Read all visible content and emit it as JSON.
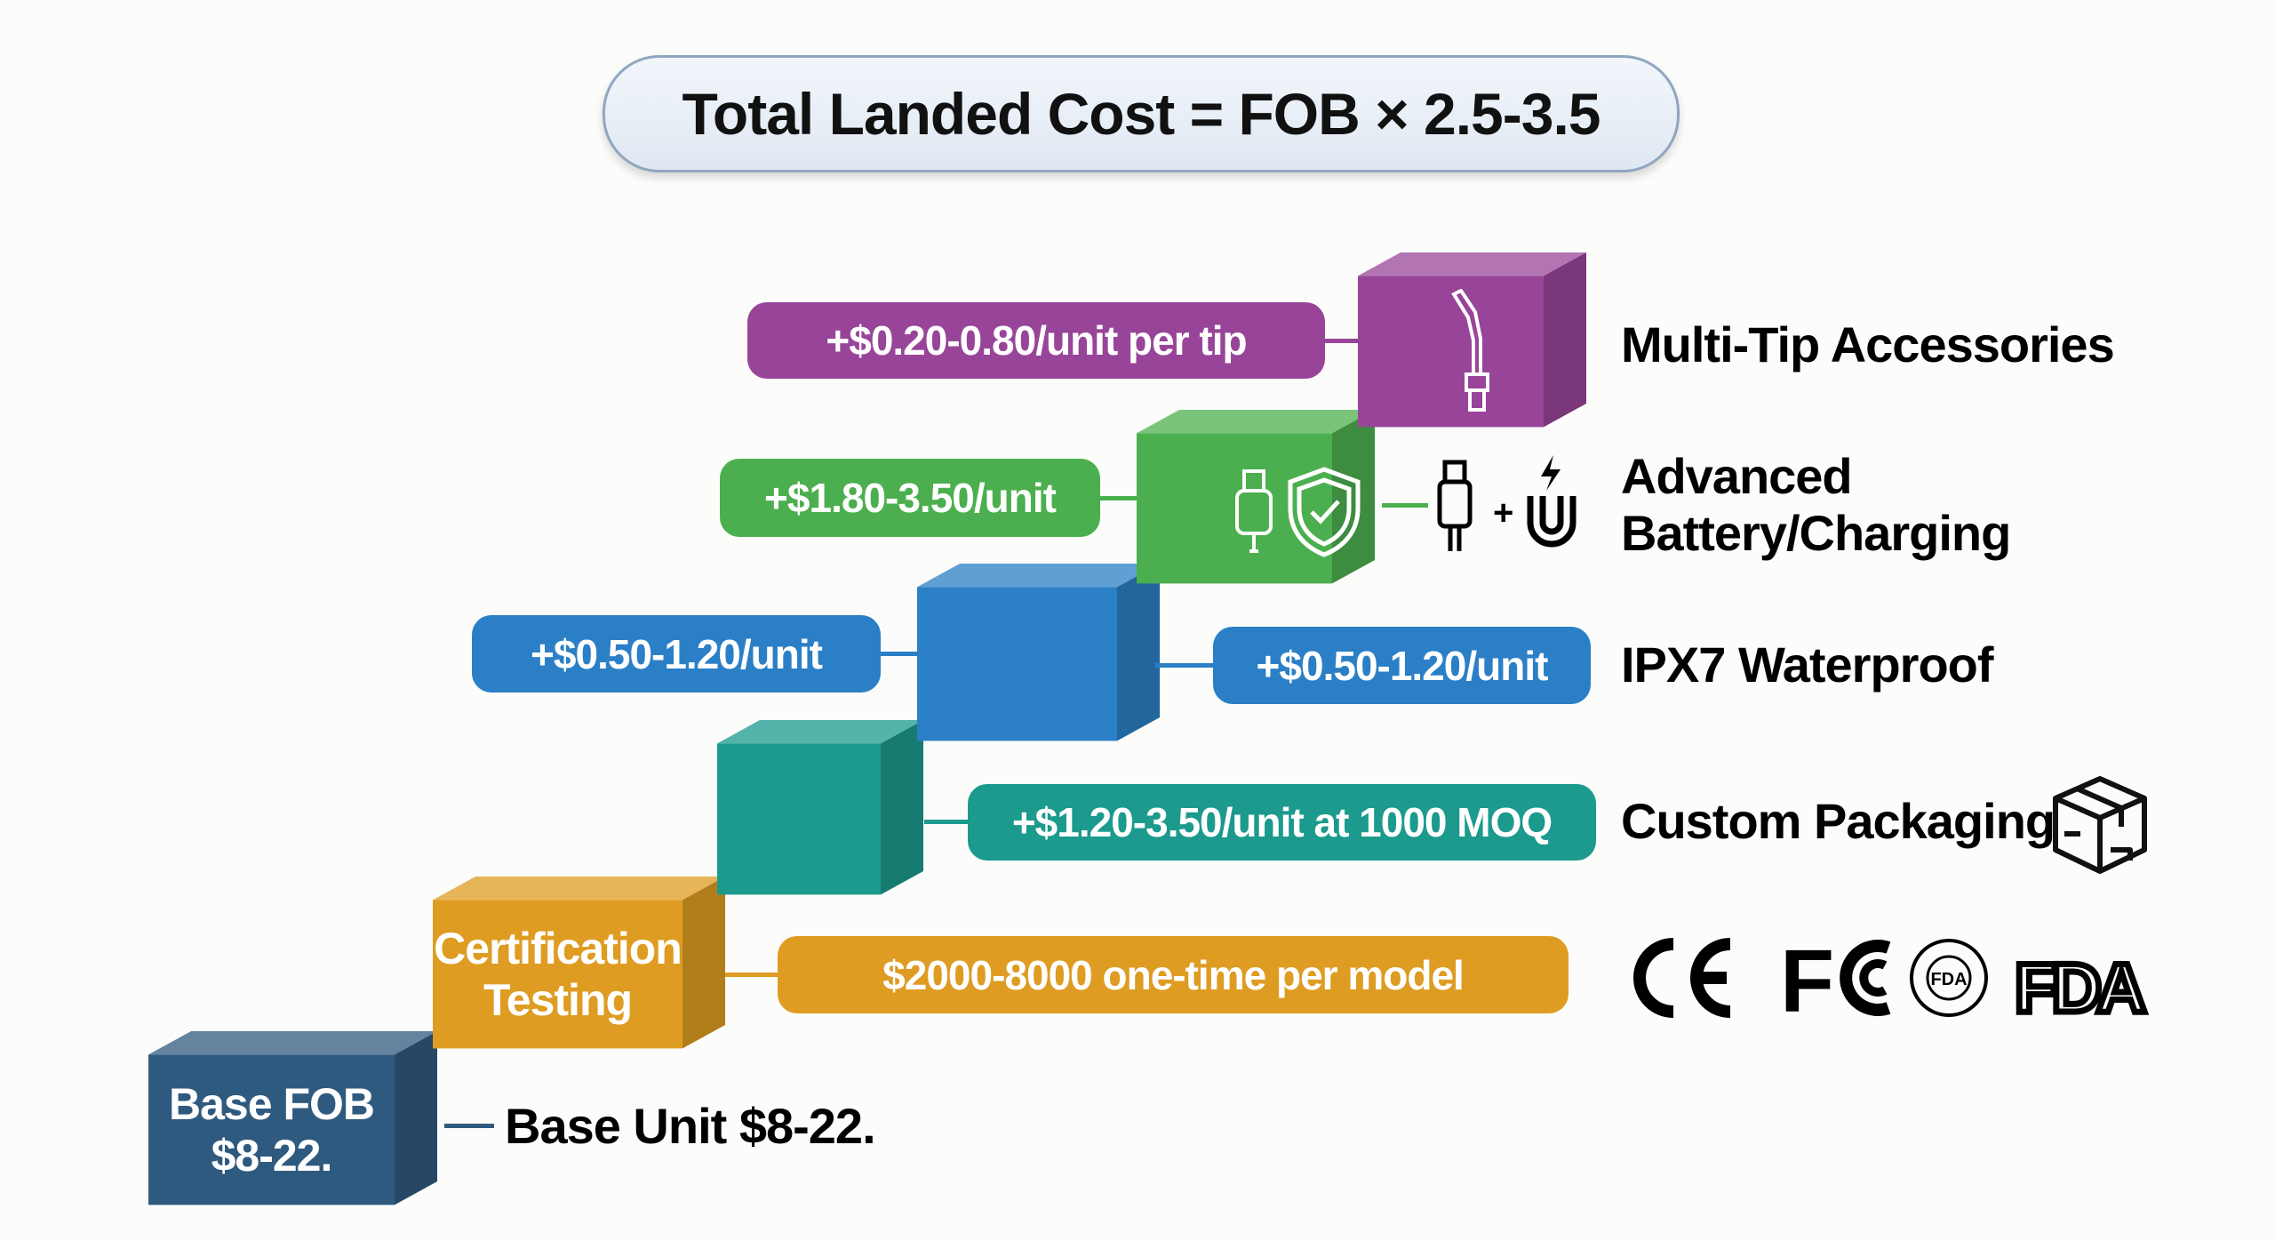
{
  "title": "Total Landed Cost = FOB × 2.5-3.5",
  "colors": {
    "base": "#2f5a7f",
    "certification": "#de9c22",
    "packaging": "#1b9a8d",
    "waterproof": "#2b7fc6",
    "battery": "#4caf4f",
    "tips": "#984599"
  },
  "tiers": {
    "base": {
      "block_line1": "Base FOB",
      "block_line2": "$8-22.",
      "label": "Base Unit $8-22."
    },
    "certification": {
      "block_line1": "Certification",
      "block_line2": "Testing",
      "cost": "$2000-8000 one-time per model",
      "logos": [
        "CE",
        "FC",
        "FDA",
        "FDA"
      ]
    },
    "packaging": {
      "cost": "+$1.20-3.50/unit at 1000 MOQ",
      "label": "Custom Packaging",
      "icon": "package-box-icon"
    },
    "waterproof": {
      "cost_left": "+$0.50-1.20/unit",
      "cost_right": "+$0.50-1.20/unit",
      "label": "IPX7 Waterproof"
    },
    "battery": {
      "cost": "+$1.80-3.50/unit",
      "label_line1": "Advanced",
      "label_line2": "Battery/Charging",
      "icons": [
        "usb-icon",
        "shield-check-icon",
        "usb-plug-icon",
        "magnet-charging-icon"
      ]
    },
    "tips": {
      "cost": "+$0.20-0.80/unit per tip",
      "label": "Multi-Tip Accessories",
      "icon": "nozzle-tip-icon"
    }
  }
}
